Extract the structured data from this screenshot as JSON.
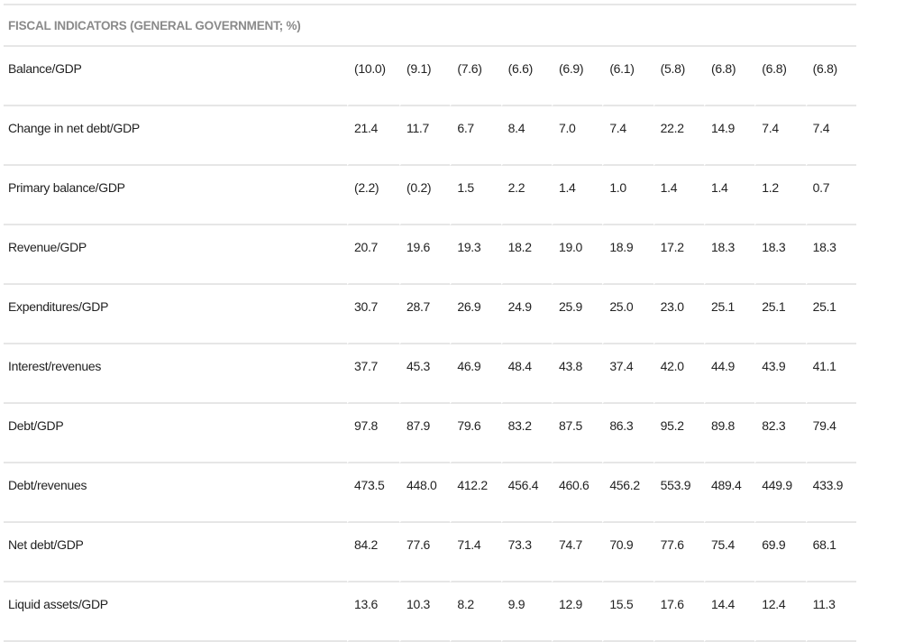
{
  "title": "FISCAL INDICATORS (GENERAL GOVERNMENT; %)",
  "rows": [
    {
      "label": "Balance/GDP",
      "values": [
        "(10.0)",
        "(9.1)",
        "(7.6)",
        "(6.6)",
        "(6.9)",
        "(6.1)",
        "(5.8)",
        "(6.8)",
        "(6.8)",
        "(6.8)"
      ]
    },
    {
      "label": "Change in net debt/GDP",
      "values": [
        "21.4",
        "11.7",
        "6.7",
        "8.4",
        "7.0",
        "7.4",
        "22.2",
        "14.9",
        "7.4",
        "7.4"
      ]
    },
    {
      "label": "Primary balance/GDP",
      "values": [
        "(2.2)",
        "(0.2)",
        "1.5",
        "2.2",
        "1.4",
        "1.0",
        "1.4",
        "1.4",
        "1.2",
        "0.7"
      ]
    },
    {
      "label": "Revenue/GDP",
      "values": [
        "20.7",
        "19.6",
        "19.3",
        "18.2",
        "19.0",
        "18.9",
        "17.2",
        "18.3",
        "18.3",
        "18.3"
      ]
    },
    {
      "label": "Expenditures/GDP",
      "values": [
        "30.7",
        "28.7",
        "26.9",
        "24.9",
        "25.9",
        "25.0",
        "23.0",
        "25.1",
        "25.1",
        "25.1"
      ]
    },
    {
      "label": "Interest/revenues",
      "values": [
        "37.7",
        "45.3",
        "46.9",
        "48.4",
        "43.8",
        "37.4",
        "42.0",
        "44.9",
        "43.9",
        "41.1"
      ]
    },
    {
      "label": "Debt/GDP",
      "values": [
        "97.8",
        "87.9",
        "79.6",
        "83.2",
        "87.5",
        "86.3",
        "95.2",
        "89.8",
        "82.3",
        "79.4"
      ]
    },
    {
      "label": "Debt/revenues",
      "values": [
        "473.5",
        "448.0",
        "412.2",
        "456.4",
        "460.6",
        "456.2",
        "553.9",
        "489.4",
        "449.9",
        "433.9"
      ]
    },
    {
      "label": "Net debt/GDP",
      "values": [
        "84.2",
        "77.6",
        "71.4",
        "73.3",
        "74.7",
        "70.9",
        "77.6",
        "75.4",
        "69.9",
        "68.1"
      ]
    },
    {
      "label": "Liquid assets/GDP",
      "values": [
        "13.6",
        "10.3",
        "8.2",
        "9.9",
        "12.9",
        "15.5",
        "17.6",
        "14.4",
        "12.4",
        "11.3"
      ]
    }
  ]
}
